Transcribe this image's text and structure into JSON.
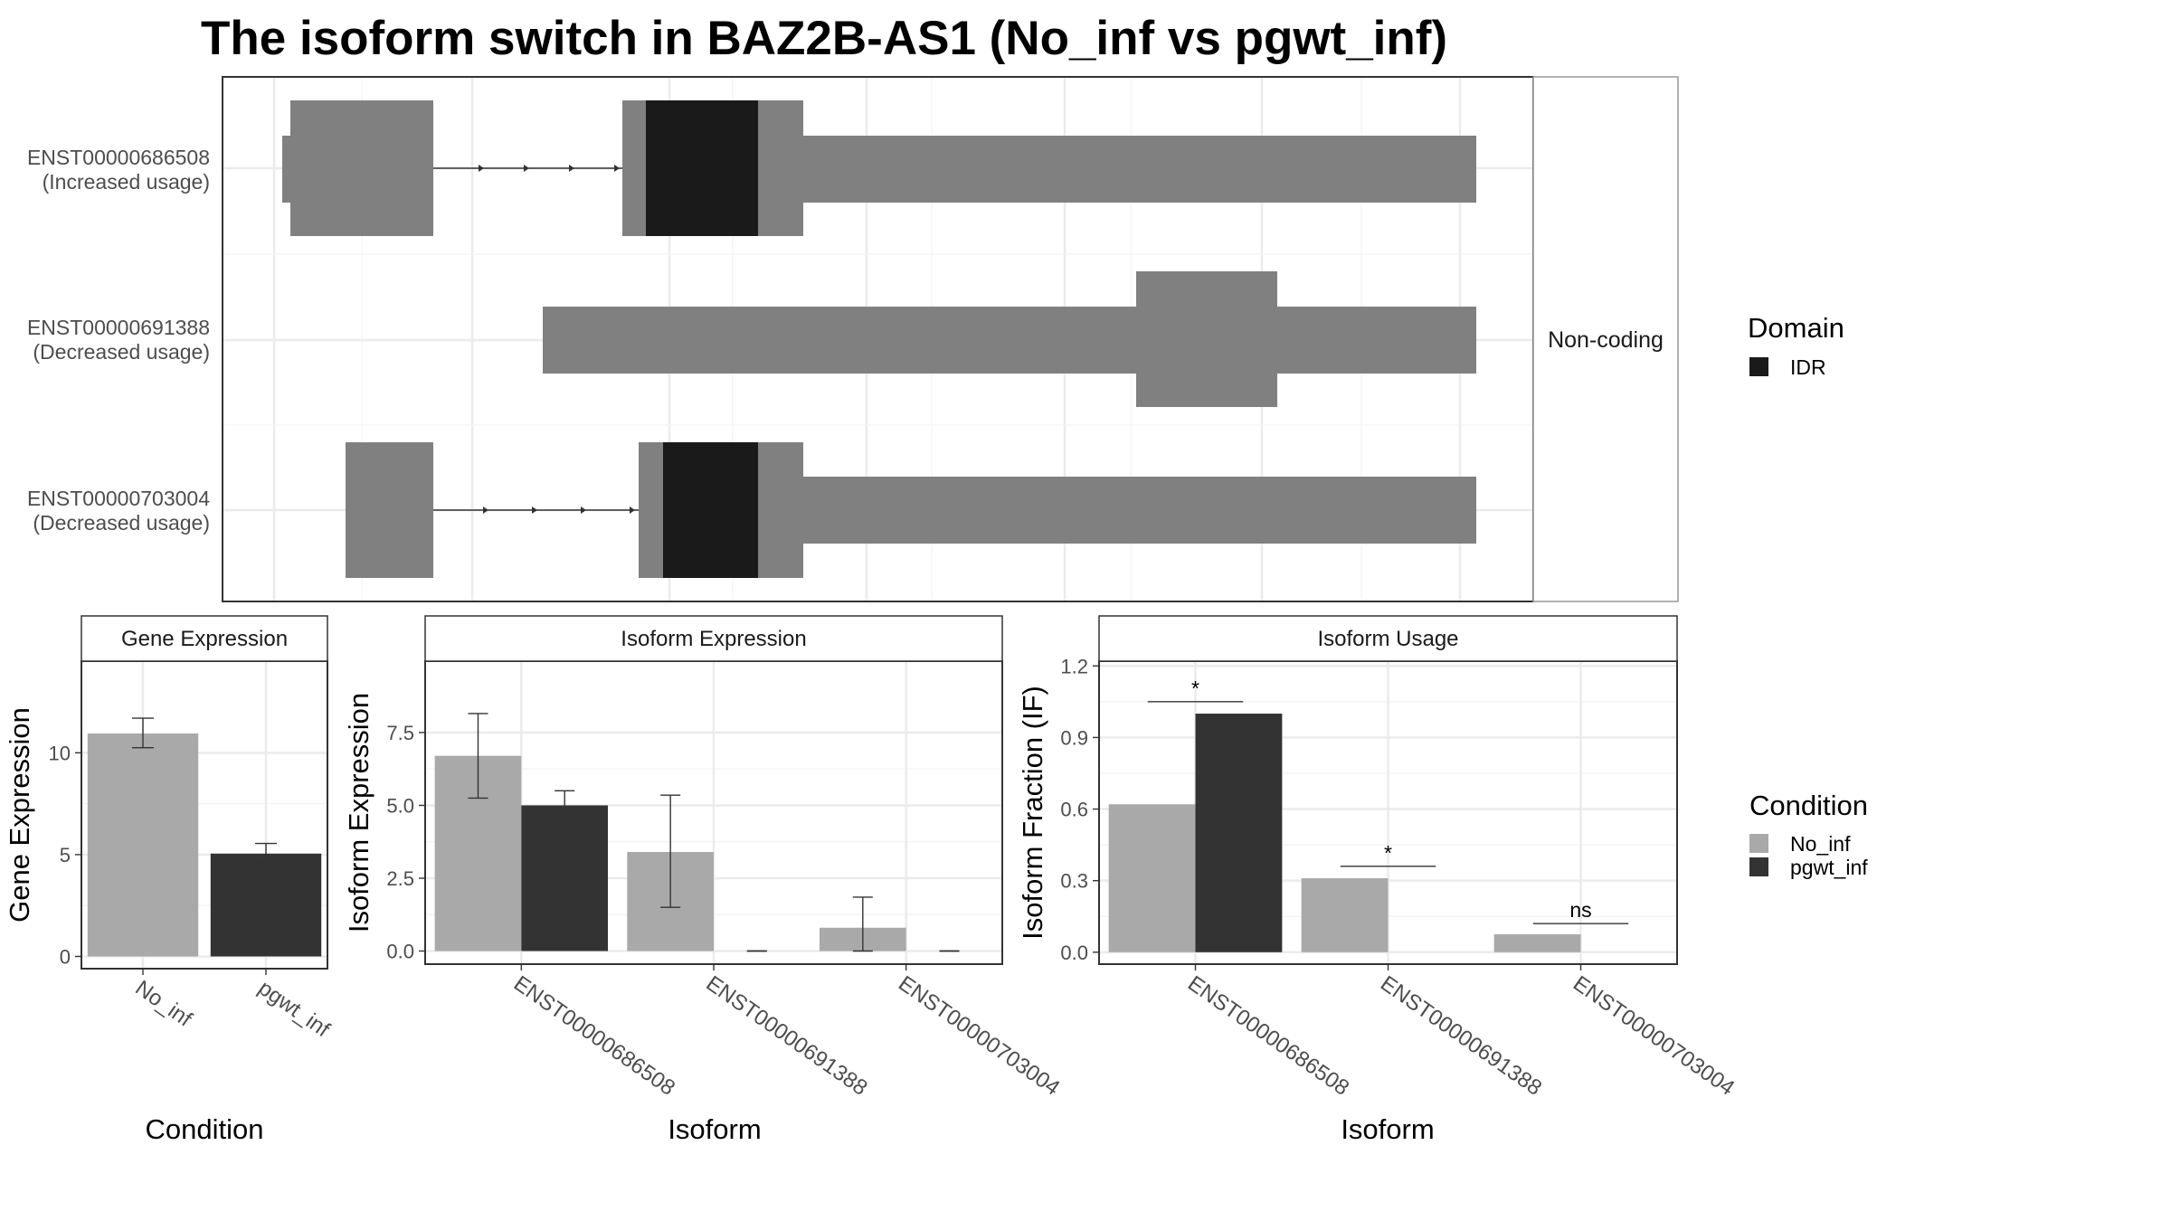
{
  "title": "The isoform switch in BAZ2B-AS1 (No_inf vs pgwt_inf)",
  "colors": {
    "exon": "#808080",
    "domain_idr": "#1a1a1a",
    "no_inf": "#a9a9a9",
    "pgwt_inf": "#333333",
    "grid": "#ebebeb",
    "border": "#333333",
    "strip_border": "#999999"
  },
  "structure_panel": {
    "strip_label": "Non-coding",
    "transcripts": [
      {
        "id": "ENST00000686508",
        "status": "(Increased usage)"
      },
      {
        "id": "ENST00000691388",
        "status": "(Decreased usage)"
      },
      {
        "id": "ENST00000703004",
        "status": "(Decreased usage)"
      }
    ]
  },
  "legends": {
    "domain": {
      "title": "Domain",
      "items": [
        {
          "label": "IDR",
          "color": "#1a1a1a"
        }
      ]
    },
    "condition": {
      "title": "Condition",
      "items": [
        {
          "label": "No_inf",
          "color": "#a9a9a9"
        },
        {
          "label": "pgwt_inf",
          "color": "#333333"
        }
      ]
    }
  },
  "chart_data": [
    {
      "type": "bar",
      "title": "Gene Expression",
      "xlabel": "Condition",
      "ylabel": "Gene Expression",
      "categories": [
        "No_inf",
        "pgwt_inf"
      ],
      "values": [
        10.95,
        5.05
      ],
      "error_low": [
        10.25,
        4.6
      ],
      "error_high": [
        11.7,
        5.55
      ],
      "yticks": [
        "0",
        "5",
        "10"
      ],
      "ylim": [
        -0.6,
        14.5
      ],
      "grid": true
    },
    {
      "type": "bar",
      "title": "Isoform Expression",
      "xlabel": "Isoform",
      "ylabel": "Isoform Expression",
      "categories": [
        "ENST00000686508",
        "ENST00000691388",
        "ENST00000703004"
      ],
      "series": [
        {
          "name": "No_inf",
          "values": [
            6.7,
            3.4,
            0.8
          ],
          "error_low": [
            5.25,
            1.5,
            0.0
          ],
          "error_high": [
            8.15,
            5.35,
            1.85
          ]
        },
        {
          "name": "pgwt_inf",
          "values": [
            5.0,
            0.0,
            0.0
          ],
          "error_low": [
            4.55,
            0.0,
            0.0
          ],
          "error_high": [
            5.5,
            0.0,
            0.0
          ]
        }
      ],
      "yticks": [
        "0.0",
        "2.5",
        "5.0",
        "7.5"
      ],
      "ylim": [
        -0.45,
        9.95
      ],
      "grid": true
    },
    {
      "type": "bar",
      "title": "Isoform Usage",
      "xlabel": "Isoform",
      "ylabel": "Isoform Fraction (IF)",
      "categories": [
        "ENST00000686508",
        "ENST00000691388",
        "ENST00000703004"
      ],
      "series": [
        {
          "name": "No_inf",
          "values": [
            0.62,
            0.31,
            0.075
          ]
        },
        {
          "name": "pgwt_inf",
          "values": [
            1.0,
            0.0,
            0.0
          ]
        }
      ],
      "significance": [
        "*",
        "*",
        "ns"
      ],
      "significance_y": [
        1.05,
        0.36,
        0.12
      ],
      "yticks": [
        "0.0",
        "0.3",
        "0.6",
        "0.9",
        "1.2"
      ],
      "ylim": [
        -0.05,
        1.22
      ],
      "grid": true
    }
  ]
}
